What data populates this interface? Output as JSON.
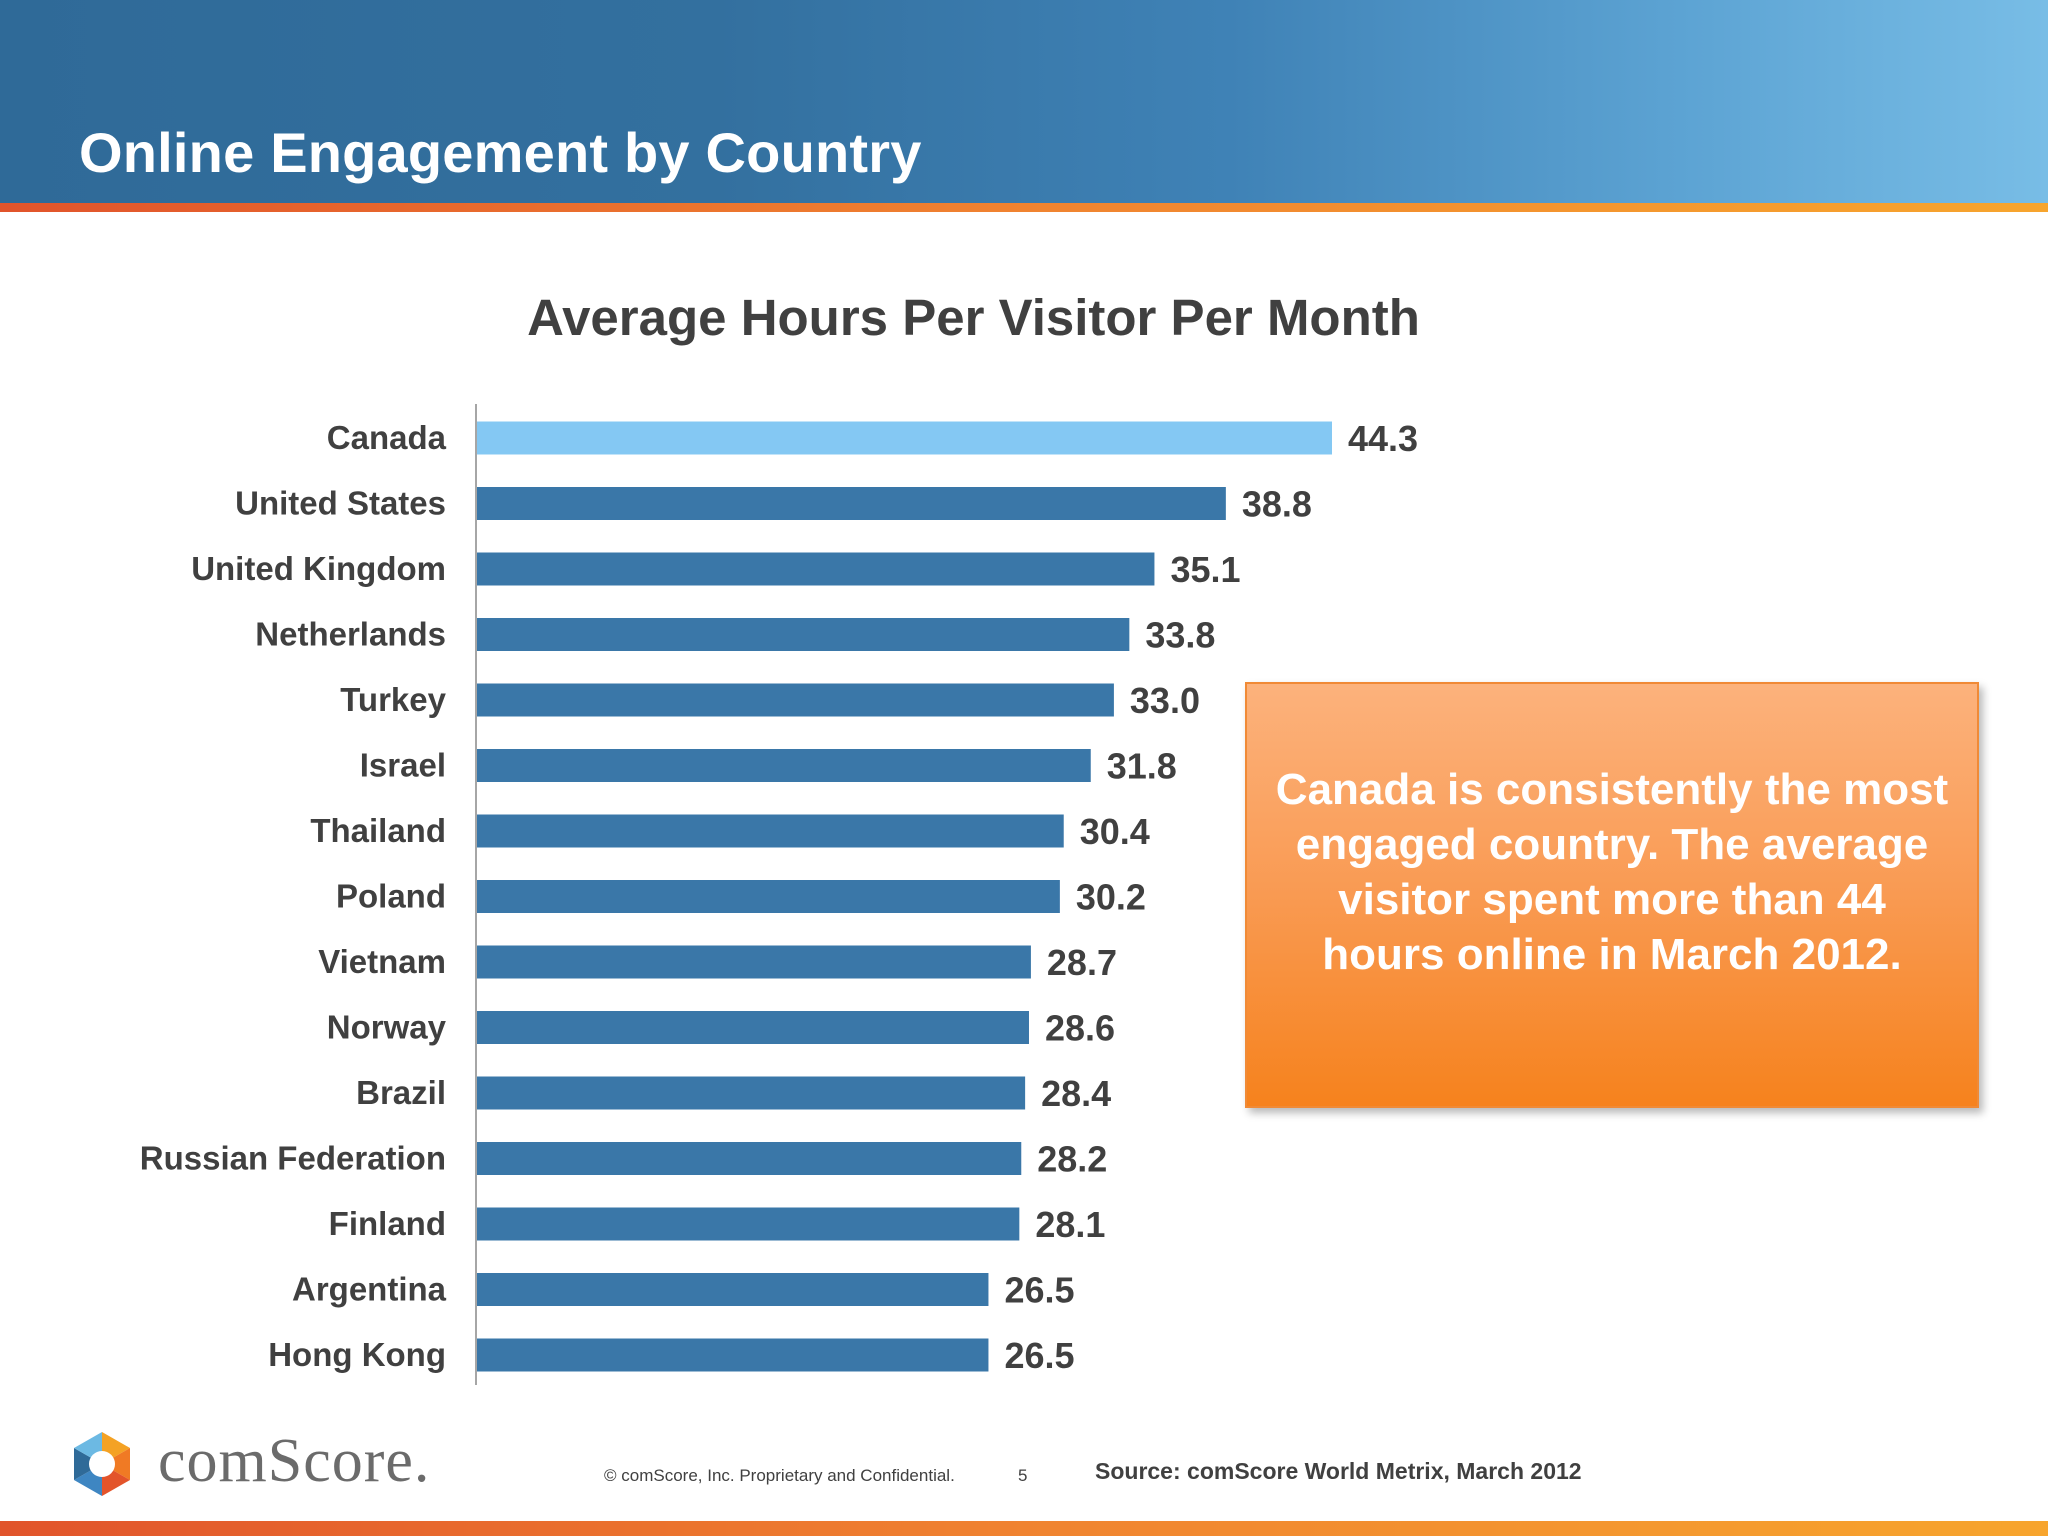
{
  "header": {
    "title": "Online Engagement by Country"
  },
  "chart_data": {
    "type": "bar",
    "orientation": "horizontal",
    "title": "Average Hours Per Visitor Per Month",
    "xlabel": "",
    "ylabel": "",
    "categories": [
      "Canada",
      "United States",
      "United Kingdom",
      "Netherlands",
      "Turkey",
      "Israel",
      "Thailand",
      "Poland",
      "Vietnam",
      "Norway",
      "Brazil",
      "Russian Federation",
      "Finland",
      "Argentina",
      "Hong Kong"
    ],
    "values": [
      44.3,
      38.8,
      35.1,
      33.8,
      33.0,
      31.8,
      30.4,
      30.2,
      28.7,
      28.6,
      28.4,
      28.2,
      28.1,
      26.5,
      26.5
    ],
    "value_labels": [
      "44.3",
      "38.8",
      "35.1",
      "33.8",
      "33.0",
      "31.8",
      "30.4",
      "30.2",
      "28.7",
      "28.6",
      "28.4",
      "28.2",
      "28.1",
      "26.5",
      "26.5"
    ],
    "highlight_category": "Canada",
    "colors": {
      "default": "#3a77a8",
      "highlight": "#84c8f3"
    },
    "grid": false,
    "legend": "none"
  },
  "callout": {
    "text": "Canada is consistently the most engaged country. The average visitor spent more than 44 hours online in March 2012."
  },
  "footer": {
    "logo_text": "comScore.",
    "copyright": "© comScore, Inc.  Proprietary and Confidential.",
    "page_number": "5",
    "source": "Source:  comScore World Metrix, March 2012"
  },
  "colors": {
    "header_blue": "#2f6a98",
    "accent_orange": "#f08330",
    "text_gray": "#404040"
  }
}
